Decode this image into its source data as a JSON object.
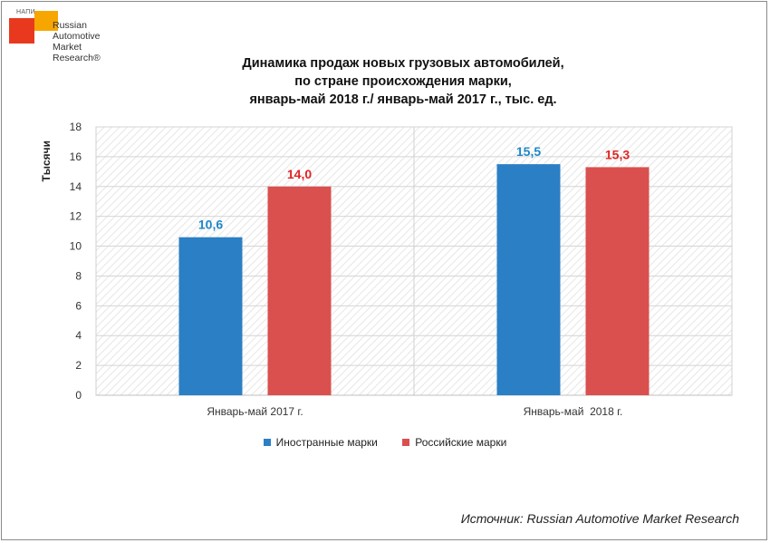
{
  "logo": {
    "small_text": "НАПИ",
    "brand": "Russian\nAutomotive\nMarket\nResearch®"
  },
  "title_lines": [
    "Динамика продаж новых грузовых автомобилей,",
    "по стране происхождения марки,",
    "январь-май 2018 г./ январь-май 2017 г., тыс. ед."
  ],
  "source": "Источник: Russian Automotive Market Research",
  "colors": {
    "foreign": "#2b7fc4",
    "russian": "#d9504e",
    "foreign_label": "#1f86c8",
    "russian_label": "#e02424"
  },
  "chart_data": {
    "type": "bar",
    "title": "Динамика продаж новых грузовых автомобилей, по стране происхождения марки, январь-май 2018 г./ январь-май 2017 г., тыс. ед.",
    "ylabel": "Тысячи",
    "xlabel": "",
    "categories": [
      "Январь-май 2017 г.",
      "Январь-май  2018 г."
    ],
    "series": [
      {
        "name": "Иностранные марки",
        "values": [
          10.6,
          15.5
        ],
        "labels": [
          "10,6",
          "15,5"
        ]
      },
      {
        "name": "Российские марки",
        "values": [
          14.0,
          15.3
        ],
        "labels": [
          "14,0",
          "15,3"
        ]
      }
    ],
    "ylim": [
      0,
      18
    ],
    "yticks": [
      "0",
      "2",
      "4",
      "6",
      "8",
      "10",
      "12",
      "14",
      "16",
      "18"
    ],
    "grid": true,
    "legend": "bottom"
  }
}
